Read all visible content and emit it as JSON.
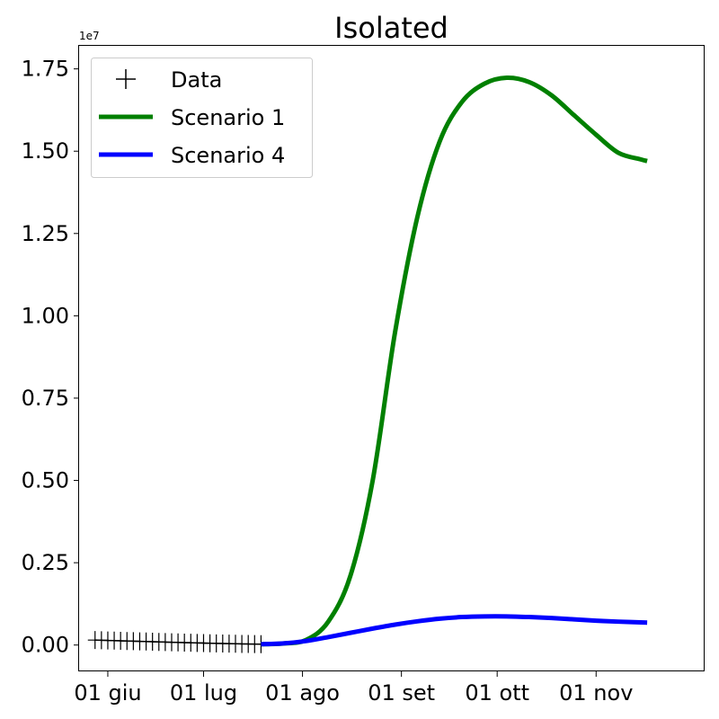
{
  "chart_data": {
    "type": "line",
    "title": "Isolated",
    "y_offset_label": "1e7",
    "xlabel": "",
    "ylabel": "",
    "x_tick_labels": [
      "01 giu",
      "01 lug",
      "01 ago",
      "01 set",
      "01 ott",
      "01 nov"
    ],
    "x_tick_dates": [
      "2020-06-01",
      "2020-07-01",
      "2020-08-01",
      "2020-09-01",
      "2020-10-01",
      "2020-11-01"
    ],
    "xlim": [
      "2020-05-23",
      "2020-12-05"
    ],
    "y_tick_labels": [
      "0.00",
      "0.25",
      "0.50",
      "0.75",
      "1.00",
      "1.25",
      "1.50",
      "1.75"
    ],
    "y_ticks": [
      0,
      0.25,
      0.5,
      0.75,
      1.0,
      1.25,
      1.5,
      1.75
    ],
    "ylim": [
      -0.08,
      1.82
    ],
    "grid": false,
    "legend": {
      "position": "top-left",
      "entries": [
        "Data",
        "Scenario 1",
        "Scenario 4"
      ]
    },
    "series": [
      {
        "name": "Data",
        "style": "markers",
        "marker": "plus",
        "color": "#000000",
        "x": [
          "2020-05-28",
          "2020-05-30",
          "2020-06-01",
          "2020-06-03",
          "2020-06-05",
          "2020-06-07",
          "2020-06-09",
          "2020-06-11",
          "2020-06-13",
          "2020-06-15",
          "2020-06-17",
          "2020-06-19",
          "2020-06-21",
          "2020-06-23",
          "2020-06-25",
          "2020-06-27",
          "2020-06-29",
          "2020-07-01",
          "2020-07-03",
          "2020-07-05",
          "2020-07-07",
          "2020-07-09",
          "2020-07-11",
          "2020-07-13",
          "2020-07-15",
          "2020-07-17",
          "2020-07-19"
        ],
        "y": [
          0.0151,
          0.0145,
          0.014,
          0.0134,
          0.0128,
          0.0122,
          0.0117,
          0.0111,
          0.0106,
          0.01,
          0.0095,
          0.0089,
          0.0084,
          0.0079,
          0.0074,
          0.0069,
          0.0064,
          0.0059,
          0.0054,
          0.005,
          0.0046,
          0.0042,
          0.0038,
          0.0034,
          0.0031,
          0.0028,
          0.0025
        ]
      },
      {
        "name": "Scenario 1",
        "style": "line",
        "color": "#008000",
        "x": [
          "2020-07-19",
          "2020-07-26",
          "2020-08-02",
          "2020-08-09",
          "2020-08-16",
          "2020-08-23",
          "2020-08-30",
          "2020-09-06",
          "2020-09-13",
          "2020-09-20",
          "2020-09-27",
          "2020-10-04",
          "2020-10-11",
          "2020-10-18",
          "2020-10-25",
          "2020-11-01",
          "2020-11-08",
          "2020-11-15",
          "2020-11-17"
        ],
        "y": [
          0.0025,
          0.0045,
          0.015,
          0.07,
          0.21,
          0.5,
          0.95,
          1.3,
          1.53,
          1.65,
          1.705,
          1.723,
          1.71,
          1.67,
          1.61,
          1.55,
          1.495,
          1.475,
          1.47
        ]
      },
      {
        "name": "Scenario 4",
        "style": "line",
        "color": "#0000ff",
        "x": [
          "2020-07-19",
          "2020-07-26",
          "2020-08-02",
          "2020-08-09",
          "2020-08-16",
          "2020-08-23",
          "2020-08-30",
          "2020-09-06",
          "2020-09-13",
          "2020-09-20",
          "2020-09-27",
          "2020-10-04",
          "2020-10-11",
          "2020-10-18",
          "2020-10-25",
          "2020-11-01",
          "2020-11-08",
          "2020-11-17"
        ],
        "y": [
          0.0025,
          0.005,
          0.012,
          0.024,
          0.037,
          0.05,
          0.062,
          0.072,
          0.08,
          0.085,
          0.087,
          0.087,
          0.085,
          0.082,
          0.078,
          0.074,
          0.071,
          0.068
        ]
      }
    ]
  }
}
